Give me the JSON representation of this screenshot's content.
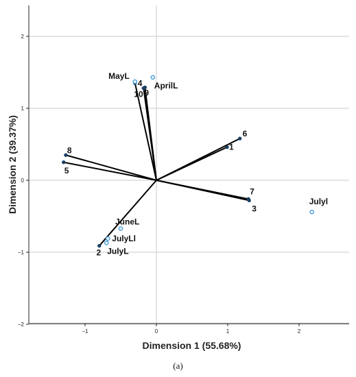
{
  "caption": "(a)",
  "chart_data": {
    "type": "scatter",
    "subtype": "biplot",
    "xlabel": "Dimension 1 (55.68%)",
    "ylabel": "Dimension 2 (39.37%)",
    "xlim": [
      -1.9,
      2.6
    ],
    "ylim": [
      -2.0,
      2.4
    ],
    "x_ticks": [
      -1,
      0,
      1,
      2
    ],
    "y_ticks": [
      -2,
      -1,
      0,
      1,
      2
    ],
    "x_tick_labels": [
      "−1",
      "0",
      "1",
      "2"
    ],
    "y_tick_labels": [
      "−2",
      "−1",
      "0",
      "1",
      "2"
    ],
    "grid": "horizontal",
    "vectors": [
      {
        "label": "1",
        "x": 0.99,
        "y": 0.46
      },
      {
        "label": "2",
        "x": -0.8,
        "y": -0.91
      },
      {
        "label": "3",
        "x": 1.3,
        "y": -0.28
      },
      {
        "label": "4",
        "x": -0.3,
        "y": 1.35
      },
      {
        "label": "5",
        "x": -1.3,
        "y": 0.25
      },
      {
        "label": "6",
        "x": 1.17,
        "y": 0.58
      },
      {
        "label": "7",
        "x": 1.29,
        "y": -0.26
      },
      {
        "label": "8",
        "x": -1.27,
        "y": 0.35
      },
      {
        "label": "9",
        "x": -0.16,
        "y": 1.29
      },
      {
        "label": "10",
        "x": -0.18,
        "y": 1.28
      }
    ],
    "points": [
      {
        "label": "MayL",
        "x": -0.3,
        "y": 1.37
      },
      {
        "label": "AprilL",
        "x": -0.05,
        "y": 1.43
      },
      {
        "label": "JuneL",
        "x": -0.5,
        "y": -0.67
      },
      {
        "label": "JulyLl",
        "x": -0.68,
        "y": -0.81
      },
      {
        "label": "JulyL",
        "x": -0.7,
        "y": -0.87
      },
      {
        "label": "Julyl",
        "x": 2.18,
        "y": -0.44
      }
    ],
    "colors": {
      "vector": "#000000",
      "point": "#4a9fd8",
      "axis": "#222222",
      "grid": "#c8c8c8"
    }
  }
}
